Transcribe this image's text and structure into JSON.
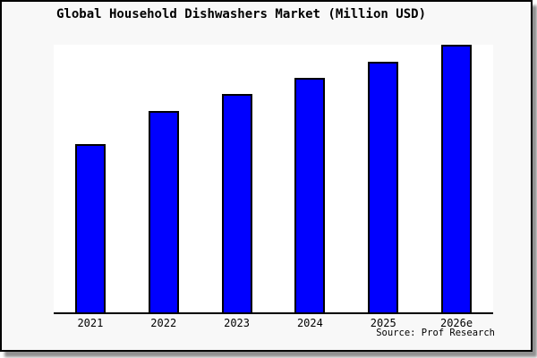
{
  "chart_data": {
    "type": "bar",
    "title": "Global Household Dishwashers Market (Million USD)",
    "categories": [
      "2021",
      "2022",
      "2023",
      "2024",
      "2025",
      "2026e"
    ],
    "values": [
      62.8,
      75.1,
      81.7,
      87.7,
      93.7,
      100
    ],
    "values_note": "relative bar heights (max = 100); chart shows no y-axis scale or data labels",
    "xlabel": "",
    "ylabel": "",
    "ylim": [
      0,
      100
    ],
    "grid": false,
    "legend": false,
    "bar_color": "#0000ff",
    "bar_border_color": "#000000",
    "plot_bg": "#ffffff",
    "canvas_bg": "#f8f8f8"
  },
  "footer": {
    "source_label": "Source: Prof Research"
  }
}
